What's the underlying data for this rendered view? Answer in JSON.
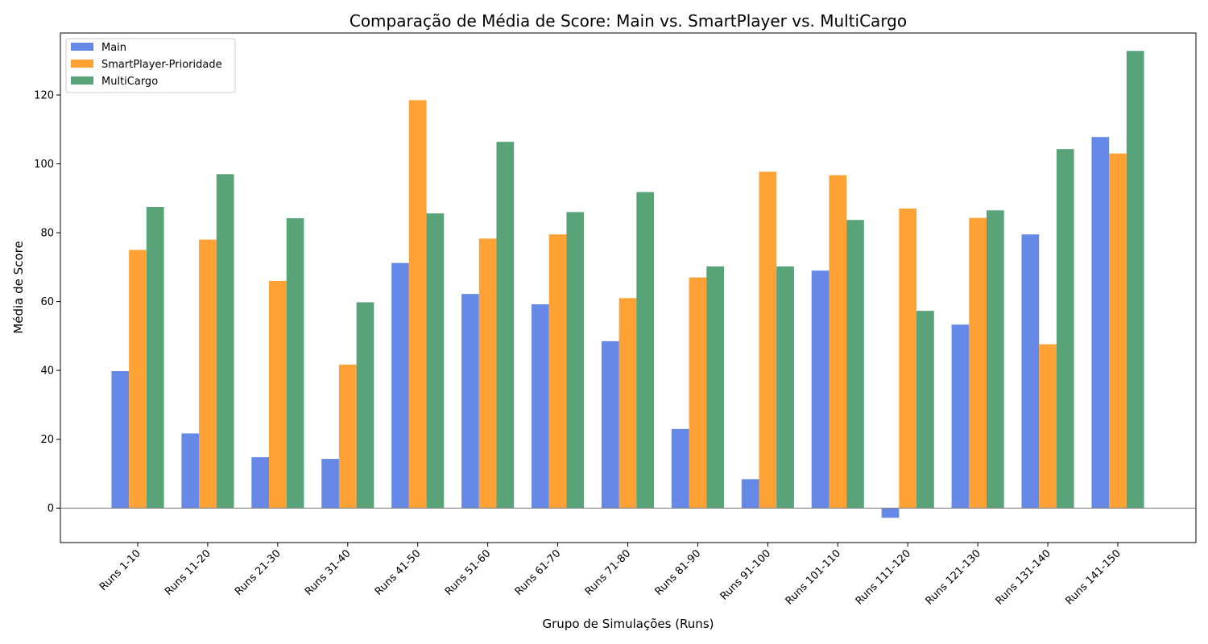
{
  "chart_data": {
    "type": "bar",
    "title": "Comparação de Média de Score: Main vs. SmartPlayer vs. MultiCargo",
    "xlabel": "Grupo de Simulações (Runs)",
    "ylabel": "Média de Score",
    "ylim": [
      -10,
      138
    ],
    "yticks": [
      0,
      20,
      40,
      60,
      80,
      100,
      120
    ],
    "grid": false,
    "zero_line": true,
    "legend_position": "top-left",
    "categories": [
      "Runs 1-10",
      "Runs 11-20",
      "Runs 21-30",
      "Runs 31-40",
      "Runs 41-50",
      "Runs 51-60",
      "Runs 61-70",
      "Runs 71-80",
      "Runs 81-90",
      "Runs 91-100",
      "Runs 101-110",
      "Runs 111-120",
      "Runs 121-130",
      "Runs 131-140",
      "Runs 141-150"
    ],
    "series": [
      {
        "name": "Main",
        "color": "#6688e6",
        "values": [
          39.8,
          21.7,
          14.8,
          14.3,
          71.2,
          62.2,
          59.2,
          48.5,
          23.0,
          8.4,
          69.0,
          -2.8,
          53.3,
          79.5,
          107.8
        ]
      },
      {
        "name": "SmartPlayer-Prioridade",
        "color": "#ffa235",
        "values": [
          75.0,
          78.0,
          66.0,
          41.7,
          118.5,
          78.3,
          79.5,
          61.0,
          67.0,
          97.7,
          96.7,
          87.0,
          84.3,
          47.6,
          103.0
        ]
      },
      {
        "name": "MultiCargo",
        "color": "#58a378",
        "values": [
          87.5,
          97.0,
          84.2,
          59.8,
          85.6,
          106.4,
          86.0,
          91.8,
          70.2,
          70.2,
          83.7,
          57.3,
          86.5,
          104.3,
          132.8
        ]
      }
    ]
  }
}
